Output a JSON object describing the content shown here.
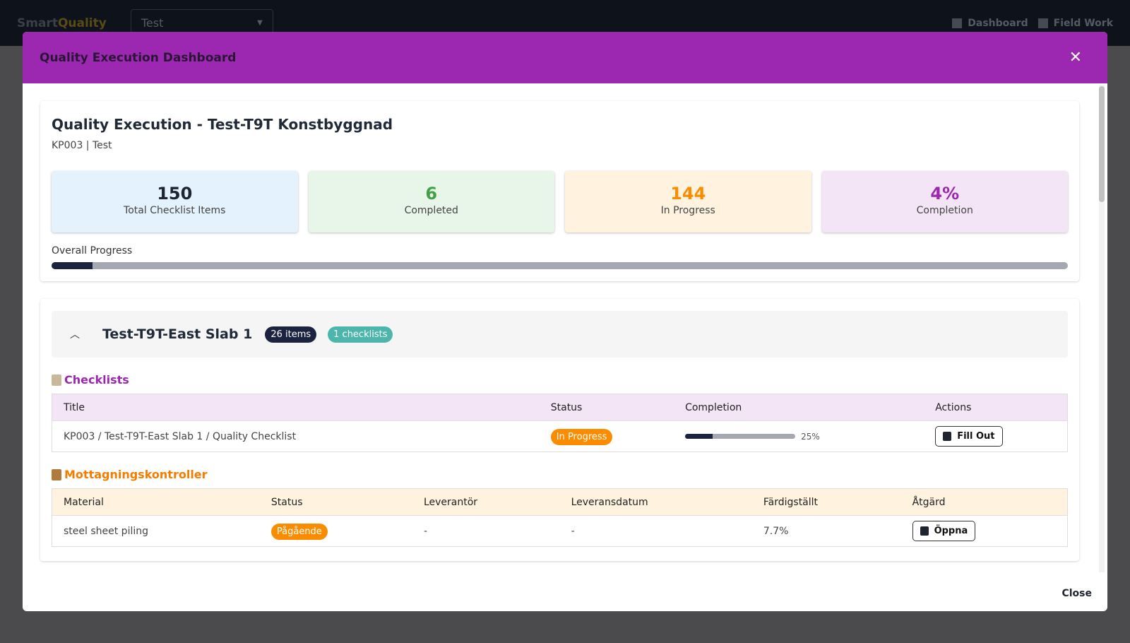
{
  "app": {
    "brand_first": "Smart",
    "brand_second": "Quality",
    "project": "Test",
    "nav": [
      "Dashboard",
      "Field Work"
    ]
  },
  "dialog": {
    "title": "Quality Execution Dashboard",
    "close": "Close"
  },
  "summary": {
    "title": "Quality Execution - Test-T9T Konstbyggnad",
    "subtitle": "KP003 | Test",
    "stats": [
      {
        "value": 150,
        "caption": "Total Checklist Items"
      },
      {
        "value": 6,
        "caption": "Completed"
      },
      {
        "value": 144,
        "caption": "In Progress"
      },
      {
        "value": 4,
        "value_label": "4%",
        "caption": "Completion"
      }
    ],
    "progress_label": "Overall Progress"
  },
  "section": {
    "title": "Test-T9T-East Slab 1",
    "badges": [
      "26 items",
      "1 checklists"
    ],
    "checklists": {
      "heading": "Checklists",
      "columns": [
        "Title",
        "Status",
        "Completion",
        "Actions"
      ],
      "rows": [
        {
          "title": "KP003 / Test-T9T-East Slab 1 / Quality Checklist",
          "status": "In Progress",
          "completion": 25,
          "completion_label": "25%",
          "action": "Fill Out"
        }
      ]
    },
    "receiving": {
      "heading": "Mottagningskontroller",
      "columns": [
        "Material",
        "Status",
        "Leverantör",
        "Leveransdatum",
        "Färdigställt",
        "Åtgärd"
      ],
      "rows": [
        {
          "material": "steel sheet piling",
          "status": "Pågående",
          "supplier": "-",
          "delivery_date": "-",
          "completed": "7.7%",
          "action": "Öppna"
        }
      ]
    }
  }
}
